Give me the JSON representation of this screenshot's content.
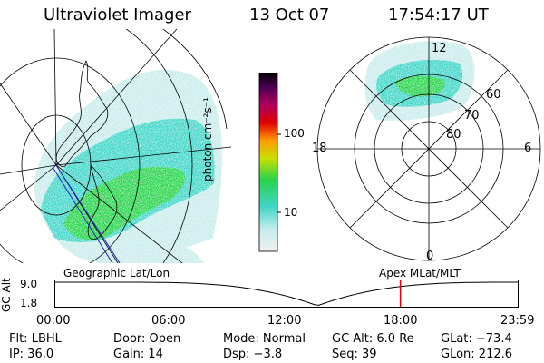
{
  "header": {
    "instrument": "Ultraviolet Imager",
    "date": "13 Oct 07",
    "time": "17:54:17 UT"
  },
  "colorbar": {
    "unit_label": "photon cm⁻²s⁻¹",
    "ticks": [
      "100",
      "10"
    ]
  },
  "polar_plot": {
    "mlt_labels": {
      "top": "12",
      "left": "18",
      "right": "6",
      "bottom": "0"
    },
    "lat_labels": [
      "60",
      "70",
      "80"
    ]
  },
  "timeline": {
    "left_title": "Geographic Lat/Lon",
    "right_title": "Apex  MLat/MLT",
    "axis_label": "GC Alt",
    "y_ticks": [
      "9.0",
      "1.8"
    ],
    "x_ticks": [
      "00:00",
      "06:00",
      "12:00",
      "18:00",
      "23:59"
    ],
    "marker_time_hours": 17.9
  },
  "status": {
    "filter": "Flt: LBHL",
    "door": "Door: Open",
    "mode": "Mode: Normal",
    "gc_alt": "GC Alt: 6.0 Re",
    "glat": "GLat: −73.4",
    "ip": "IP: 36.0",
    "gain": "Gain: 14",
    "dsp": "Dsp:    −3.8",
    "seq": "Seq: 39",
    "glon": "GLon: 212.6"
  },
  "colors": {
    "aurora_low": "#c9ecec",
    "aurora_mid": "#3fd6c8",
    "aurora_high": "#27d44b",
    "marker": "#e00000"
  }
}
